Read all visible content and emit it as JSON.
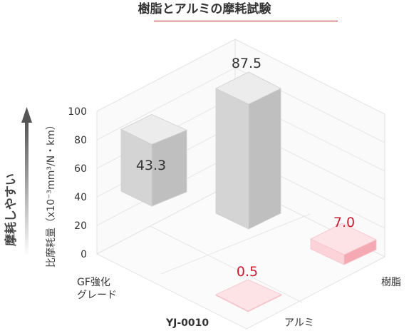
{
  "title": "樹脂とアルミの摩耗試験",
  "side_label": "摩耗しやすい",
  "y_axis_label": "比摩耗量（x10⁻³mm³/N・km）",
  "colors": {
    "accent_red": "#c81e32",
    "bar_gray": "#d6d6d6",
    "bar_pink": "#fdd3d8"
  },
  "chart_data": {
    "type": "bar",
    "title": "樹脂とアルミの摩耗試験",
    "ylabel": "比摩耗量（x10⁻³mm³/N・km）",
    "ylim": [
      0,
      100
    ],
    "yticks": [
      "0",
      "20",
      "40",
      "60",
      "80",
      "100"
    ],
    "grid": true,
    "categories": [
      "GF強化グレード",
      "YJ-0010"
    ],
    "series": [
      {
        "name": "樹脂",
        "values": [
          43.3,
          87.5
        ],
        "value_labels": [
          "43.3",
          "87.5"
        ]
      },
      {
        "name": "アルミ",
        "values": [
          null,
          0.5
        ],
        "value_labels": [
          "",
          "0.5"
        ]
      }
    ],
    "extra_bar": {
      "label": "7.0",
      "value": 7.0
    },
    "axis_labels": {
      "gf_line1": "GF強化",
      "gf_line2": "グレード",
      "yj": "YJ-0010",
      "alumi": "アルミ",
      "jushi": "樹脂"
    }
  }
}
